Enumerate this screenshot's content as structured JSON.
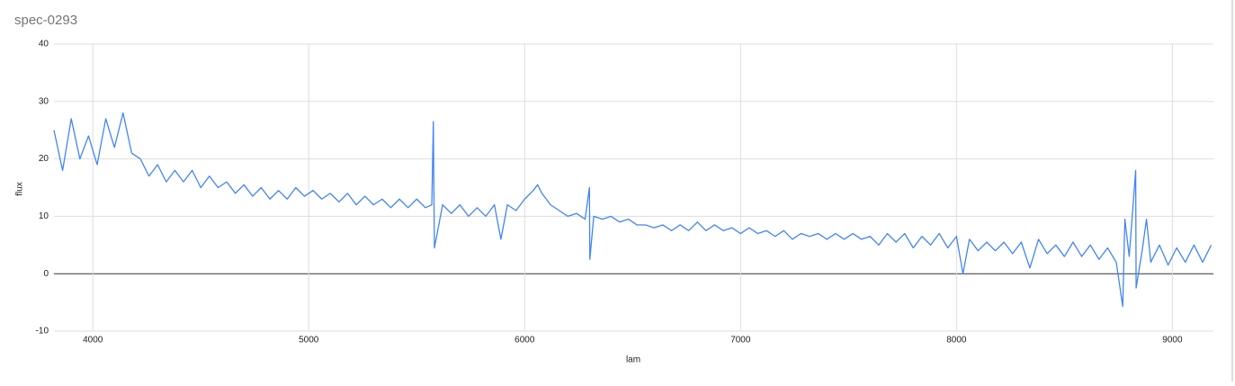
{
  "chart_data": {
    "type": "line",
    "title": "spec-0293",
    "x_label": "lam",
    "y_label": "flux",
    "x": [
      3820,
      3860,
      3900,
      3940,
      3980,
      4020,
      4060,
      4100,
      4140,
      4180,
      4220,
      4260,
      4300,
      4340,
      4380,
      4420,
      4460,
      4500,
      4540,
      4580,
      4620,
      4660,
      4700,
      4740,
      4780,
      4820,
      4860,
      4900,
      4940,
      4980,
      5020,
      5060,
      5100,
      5140,
      5180,
      5220,
      5260,
      5300,
      5340,
      5380,
      5420,
      5460,
      5500,
      5540,
      5570,
      5577,
      5582,
      5620,
      5660,
      5700,
      5740,
      5780,
      5820,
      5860,
      5890,
      5920,
      5960,
      6000,
      6040,
      6060,
      6080,
      6120,
      6160,
      6200,
      6240,
      6280,
      6300,
      6302,
      6320,
      6360,
      6400,
      6440,
      6480,
      6520,
      6560,
      6600,
      6640,
      6680,
      6720,
      6760,
      6800,
      6840,
      6880,
      6920,
      6960,
      7000,
      7040,
      7080,
      7120,
      7160,
      7200,
      7240,
      7280,
      7320,
      7360,
      7400,
      7440,
      7480,
      7520,
      7560,
      7600,
      7640,
      7680,
      7720,
      7760,
      7800,
      7840,
      7880,
      7920,
      7960,
      8000,
      8030,
      8060,
      8100,
      8140,
      8180,
      8220,
      8260,
      8300,
      8340,
      8380,
      8420,
      8460,
      8500,
      8540,
      8580,
      8620,
      8660,
      8700,
      8740,
      8770,
      8780,
      8800,
      8830,
      8832,
      8860,
      8880,
      8900,
      8940,
      8980,
      9020,
      9060,
      9100,
      9140,
      9180
    ],
    "series": [
      {
        "name": "flux",
        "color": "#4285f4",
        "values": [
          25,
          18,
          27,
          20,
          24,
          19,
          27,
          22,
          28,
          21,
          20,
          17,
          19,
          16,
          18,
          16,
          18,
          15,
          17,
          15,
          16,
          14,
          15.5,
          13.5,
          15,
          13,
          14.5,
          13,
          15,
          13.5,
          14.5,
          13,
          14,
          12.5,
          14,
          12,
          13.5,
          12,
          13,
          11.5,
          13,
          11.5,
          13,
          11.5,
          12,
          26.5,
          4.5,
          12,
          10.5,
          12,
          10,
          11.5,
          10,
          12,
          6,
          12,
          11,
          13,
          14.5,
          15.5,
          14,
          12,
          11,
          10,
          10.5,
          9.5,
          15,
          2.5,
          10,
          9.5,
          10,
          9,
          9.5,
          8.5,
          8.5,
          8,
          8.5,
          7.5,
          8.5,
          7.5,
          9,
          7.5,
          8.5,
          7.5,
          8,
          7,
          8,
          7,
          7.5,
          6.5,
          7.5,
          6,
          7,
          6.5,
          7,
          6,
          7,
          6,
          7,
          6,
          6.5,
          5,
          7,
          5.5,
          7,
          4.5,
          6.5,
          5,
          7,
          4.5,
          6.5,
          0,
          6,
          4,
          5.5,
          4,
          5.5,
          3.5,
          5.5,
          1,
          6,
          3.5,
          5,
          3,
          5.5,
          3,
          5,
          2.5,
          4.5,
          2,
          -5.7,
          9.5,
          3,
          18,
          -2.5,
          4,
          9.5,
          2,
          5,
          1.5,
          4.5,
          2,
          5,
          2,
          5
        ]
      }
    ],
    "xlim": [
      3820,
      9190
    ],
    "ylim": [
      -10,
      40
    ],
    "xticks": [
      4000,
      5000,
      6000,
      7000,
      8000,
      9000
    ],
    "yticks": [
      -10,
      0,
      10,
      20,
      30,
      40
    ],
    "grid": true
  }
}
